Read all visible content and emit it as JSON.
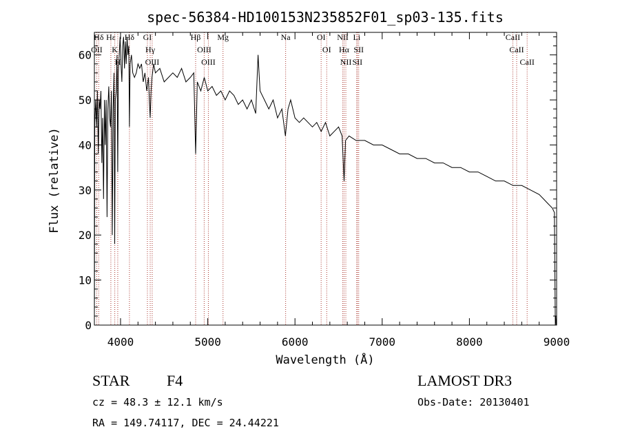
{
  "chart_data": {
    "type": "line",
    "title": "spec-56384-HD100153N235852F01_sp03-135.fits",
    "xlabel": "Wavelength (Å)",
    "ylabel": "Flux (relative)",
    "xlim": [
      3700,
      9000
    ],
    "ylim": [
      0,
      65
    ],
    "xticks": [
      4000,
      5000,
      6000,
      7000,
      8000,
      9000
    ],
    "yticks": [
      0,
      10,
      20,
      30,
      40,
      50,
      60
    ],
    "series": [
      {
        "name": "flux",
        "x": [
          3700,
          3705,
          3715,
          3725,
          3735,
          3745,
          3755,
          3765,
          3775,
          3785,
          3795,
          3805,
          3815,
          3825,
          3835,
          3845,
          3855,
          3865,
          3875,
          3885,
          3895,
          3905,
          3915,
          3925,
          3933,
          3940,
          3950,
          3960,
          3968,
          3975,
          3985,
          3995,
          4005,
          4015,
          4025,
          4035,
          4045,
          4055,
          4065,
          4075,
          4085,
          4095,
          4102,
          4110,
          4125,
          4140,
          4160,
          4180,
          4200,
          4220,
          4240,
          4260,
          4280,
          4300,
          4320,
          4330,
          4340,
          4350,
          4360,
          4380,
          4400,
          4450,
          4500,
          4550,
          4600,
          4650,
          4700,
          4750,
          4800,
          4840,
          4861,
          4880,
          4920,
          4960,
          5000,
          5050,
          5100,
          5150,
          5200,
          5250,
          5300,
          5350,
          5400,
          5450,
          5500,
          5550,
          5577,
          5600,
          5650,
          5700,
          5750,
          5800,
          5850,
          5890,
          5920,
          5950,
          6000,
          6050,
          6100,
          6150,
          6200,
          6250,
          6300,
          6350,
          6400,
          6450,
          6500,
          6540,
          6563,
          6580,
          6620,
          6700,
          6800,
          6900,
          7000,
          7100,
          7200,
          7300,
          7400,
          7500,
          7600,
          7700,
          7800,
          7900,
          8000,
          8100,
          8200,
          8300,
          8400,
          8500,
          8600,
          8700,
          8800,
          8850,
          8900,
          8950,
          8975,
          8985,
          8990,
          8995,
          9000
        ],
        "y": [
          0,
          45,
          50,
          44,
          52,
          38,
          50,
          48,
          52,
          36,
          46,
          28,
          50,
          40,
          50,
          24,
          48,
          53,
          46,
          44,
          52,
          20,
          48,
          56,
          18,
          50,
          52,
          60,
          34,
          56,
          60,
          64,
          58,
          54,
          62,
          64,
          57,
          63,
          58,
          64,
          60,
          62,
          44,
          58,
          60,
          56,
          55,
          56,
          58,
          57,
          58,
          54,
          56,
          52,
          55,
          50,
          46,
          52,
          55,
          58,
          56,
          57,
          54,
          55,
          56,
          55,
          57,
          54,
          55,
          56,
          38,
          54,
          52,
          55,
          52,
          53,
          51,
          52,
          50,
          52,
          51,
          49,
          50,
          48,
          50,
          47,
          60,
          52,
          50,
          48,
          50,
          46,
          48,
          42,
          48,
          50,
          46,
          45,
          46,
          45,
          44,
          45,
          43,
          45,
          42,
          43,
          44,
          42,
          32,
          41,
          42,
          41,
          41,
          40,
          40,
          39,
          38,
          38,
          37,
          37,
          36,
          36,
          35,
          35,
          34,
          34,
          33,
          32,
          32,
          31,
          31,
          30,
          29,
          28,
          27,
          26,
          25,
          0,
          2,
          0,
          0
        ]
      }
    ],
    "lines": [
      {
        "label": "Hδ",
        "wave": 3750
      },
      {
        "label": "OII",
        "wave": 3727
      },
      {
        "label": "Hε",
        "wave": 3889
      },
      {
        "label": "K",
        "wave": 3934
      },
      {
        "label": "H",
        "wave": 3968
      },
      {
        "label": "Hδ",
        "wave": 4102
      },
      {
        "label": "GI",
        "wave": 4308
      },
      {
        "label": "Hγ",
        "wave": 4340
      },
      {
        "label": "OIII",
        "wave": 4363
      },
      {
        "label": "Hβ",
        "wave": 4861
      },
      {
        "label": "OIII",
        "wave": 4959
      },
      {
        "label": "OIII",
        "wave": 5007
      },
      {
        "label": "Mg",
        "wave": 5175
      },
      {
        "label": "Na",
        "wave": 5893
      },
      {
        "label": "OI",
        "wave": 6300
      },
      {
        "label": "OI",
        "wave": 6364
      },
      {
        "label": "NII",
        "wave": 6548
      },
      {
        "label": "Hα",
        "wave": 6563
      },
      {
        "label": "NII",
        "wave": 6583
      },
      {
        "label": "Li",
        "wave": 6708
      },
      {
        "label": "SII",
        "wave": 6716
      },
      {
        "label": "SII",
        "wave": 6731
      },
      {
        "label": "CaII",
        "wave": 8498
      },
      {
        "label": "CaII",
        "wave": 8542
      },
      {
        "label": "CaII",
        "wave": 8662
      }
    ]
  },
  "info": {
    "class": "STAR",
    "subclass": "F4",
    "survey": "LAMOST DR3",
    "redshift": "cz = 48.3 ± 12.1 km/s",
    "obs_date": "Obs-Date: 20130401",
    "coords": "RA = 149.74117, DEC =  24.44221"
  },
  "colors": {
    "line": "#000000",
    "marker": "#a8322a"
  }
}
